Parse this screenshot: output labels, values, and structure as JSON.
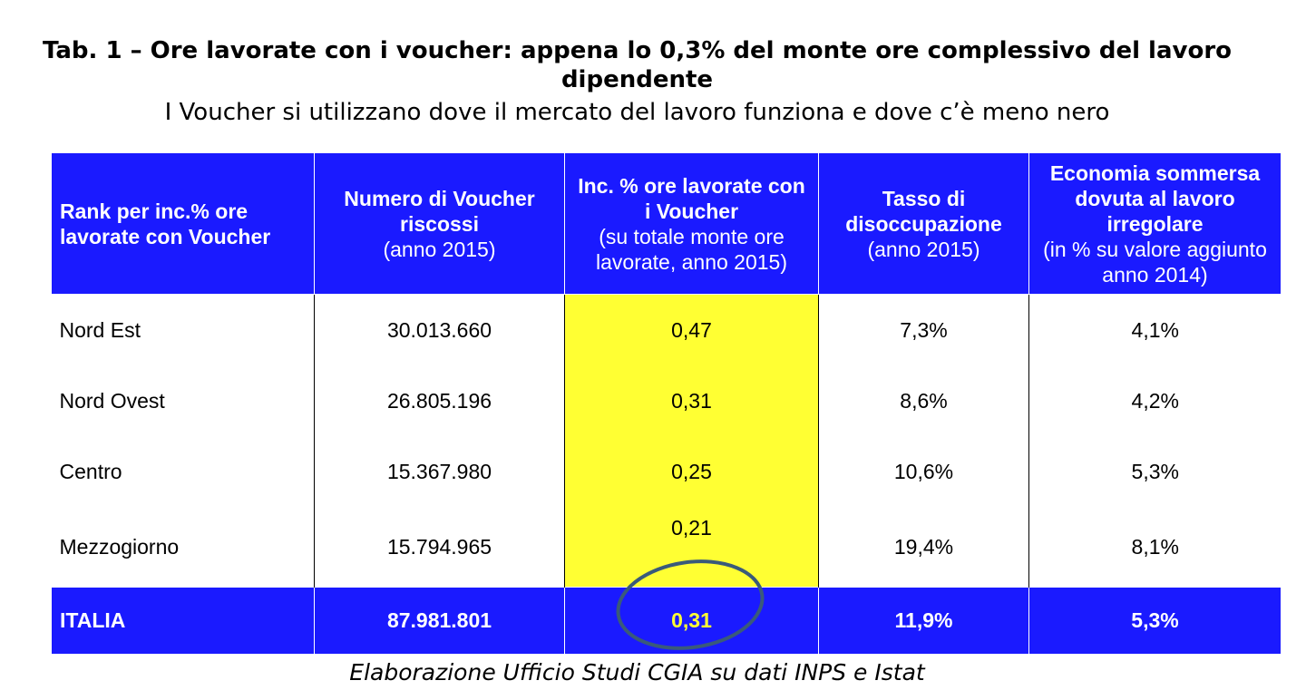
{
  "title": "Tab. 1 – Ore lavorate con i voucher: appena lo 0,3% del monte ore complessivo del lavoro dipendente",
  "subtitle": "I Voucher si utilizzano dove il mercato del lavoro funziona e dove c’è meno nero",
  "table": {
    "headers": [
      {
        "bold": "Rank per inc.% ore lavorate con Voucher",
        "normal": ""
      },
      {
        "bold": "Numero di Voucher riscossi",
        "normal": "(anno 2015)"
      },
      {
        "bold": "Inc. % ore lavorate con i Voucher",
        "normal": "(su totale monte ore lavorate, anno 2015)"
      },
      {
        "bold": "Tasso di disoccupazione",
        "normal": "(anno 2015)"
      },
      {
        "bold": "Economia sommersa dovuta al lavoro irregolare",
        "normal": "(in % su valore aggiunto anno 2014)"
      }
    ],
    "rows": [
      {
        "region": "Nord Est",
        "vouchers": "30.013.660",
        "inc": "0,47",
        "unemployment": "7,3%",
        "shadow": "4,1%"
      },
      {
        "region": "Nord Ovest",
        "vouchers": "26.805.196",
        "inc": "0,31",
        "unemployment": "8,6%",
        "shadow": "4,2%"
      },
      {
        "region": "Centro",
        "vouchers": "15.367.980",
        "inc": "0,25",
        "unemployment": "10,6%",
        "shadow": "5,3%"
      },
      {
        "region": "Mezzogiorno",
        "vouchers": "15.794.965",
        "inc": "0,21",
        "unemployment": "19,4%",
        "shadow": "8,1%"
      }
    ],
    "total": {
      "region": "ITALIA",
      "vouchers": "87.981.801",
      "inc": "0,31",
      "unemployment": "11,9%",
      "shadow": "5,3%"
    }
  },
  "source": "Elaborazione Ufficio Studi CGIA su dati INPS e Istat",
  "colors": {
    "header_bg": "#1a1aff",
    "highlight": "#ffff33",
    "circle": "#3a5a7a"
  }
}
